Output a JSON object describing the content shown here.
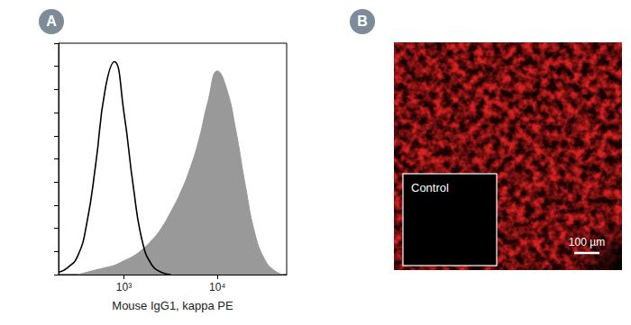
{
  "panel_labels": [
    "A",
    "B"
  ],
  "chart_data": {
    "type": "line",
    "x_label": "Mouse IgG1, kappa PE",
    "x": [
      200,
      250,
      320,
      400,
      500,
      630,
      790,
      1000,
      1260,
      1580,
      2000,
      2510,
      3160,
      3980,
      5010,
      6310,
      7940,
      10000,
      12600,
      15800,
      20000,
      25100,
      31600,
      39800,
      50100
    ],
    "series": [
      {
        "type": "area",
        "color": "#999999",
        "values": [
          null,
          null,
          0,
          1,
          2,
          3,
          4,
          6,
          8,
          11,
          15,
          20,
          27,
          35,
          45,
          58,
          75,
          88,
          80,
          62,
          38,
          18,
          7,
          2,
          0
        ]
      },
      {
        "type": "line",
        "color": "#000000",
        "line_style": "solid",
        "values": [
          1,
          3,
          8,
          22,
          48,
          80,
          92,
          70,
          38,
          14,
          4,
          1,
          0,
          null,
          null,
          null,
          null,
          null,
          null,
          null,
          null,
          null,
          null,
          null,
          null
        ]
      }
    ],
    "xlim": [
      200,
      55000
    ],
    "xticks": [
      {
        "value": 1000,
        "label": "10³"
      },
      {
        "value": 10000,
        "label": "10⁴"
      }
    ],
    "ylim": [
      0,
      100
    ],
    "yticks": [
      0,
      10,
      20,
      30,
      40,
      50,
      60,
      70,
      80,
      90,
      100
    ],
    "log": "x",
    "grid": false,
    "tick_labels": "x"
  },
  "image": {
    "inset_label": "Control",
    "scale_bar": "100 µm",
    "color": "#d42020"
  }
}
